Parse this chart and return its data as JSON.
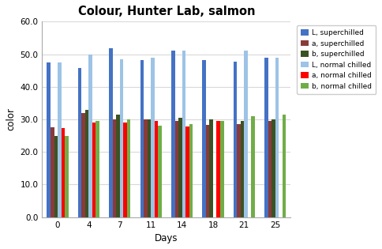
{
  "title": "Colour, Hunter Lab, salmon",
  "xlabel": "Days",
  "ylabel": "color",
  "days": [
    0,
    4,
    7,
    11,
    14,
    18,
    21,
    25
  ],
  "series": {
    "L_superchilled": [
      47.5,
      45.8,
      51.8,
      48.3,
      51.0,
      48.3,
      47.8,
      49.0
    ],
    "a_superchilled": [
      27.5,
      32.0,
      30.0,
      30.0,
      29.5,
      28.3,
      28.5,
      29.5
    ],
    "b_superchilled": [
      25.0,
      33.0,
      31.5,
      30.0,
      30.5,
      30.0,
      29.5,
      30.0
    ],
    "L_normal_chilled": [
      47.5,
      50.0,
      48.5,
      48.8,
      51.2,
      0,
      51.2,
      49.0
    ],
    "a_normal_chilled": [
      27.3,
      29.0,
      29.0,
      29.5,
      27.8,
      29.5,
      0,
      0
    ],
    "b_normal_chilled": [
      25.0,
      29.5,
      30.0,
      28.0,
      28.5,
      29.5,
      31.0,
      31.5
    ]
  },
  "colors": {
    "L_superchilled": "#4472C4",
    "a_superchilled": "#8B3A3A",
    "b_superchilled": "#3B5323",
    "L_normal_chilled": "#9DC3E6",
    "a_normal_chilled": "#FF0000",
    "b_normal_chilled": "#70AD47"
  },
  "legend_labels": {
    "L_superchilled": "L, superchilled",
    "a_superchilled": "a, superchilled",
    "b_superchilled": "b, superchilled",
    "L_normal_chilled": "L, normal chilled",
    "a_normal_chilled": "a, normal chilled",
    "b_normal_chilled": "b, normal chilled"
  },
  "ylim": [
    0,
    60
  ],
  "yticks": [
    0.0,
    10.0,
    20.0,
    30.0,
    40.0,
    50.0,
    60.0
  ],
  "background_color": "#FFFFFF",
  "grid_color": "#D9D9D9",
  "figsize": [
    4.84,
    3.15
  ],
  "dpi": 100
}
